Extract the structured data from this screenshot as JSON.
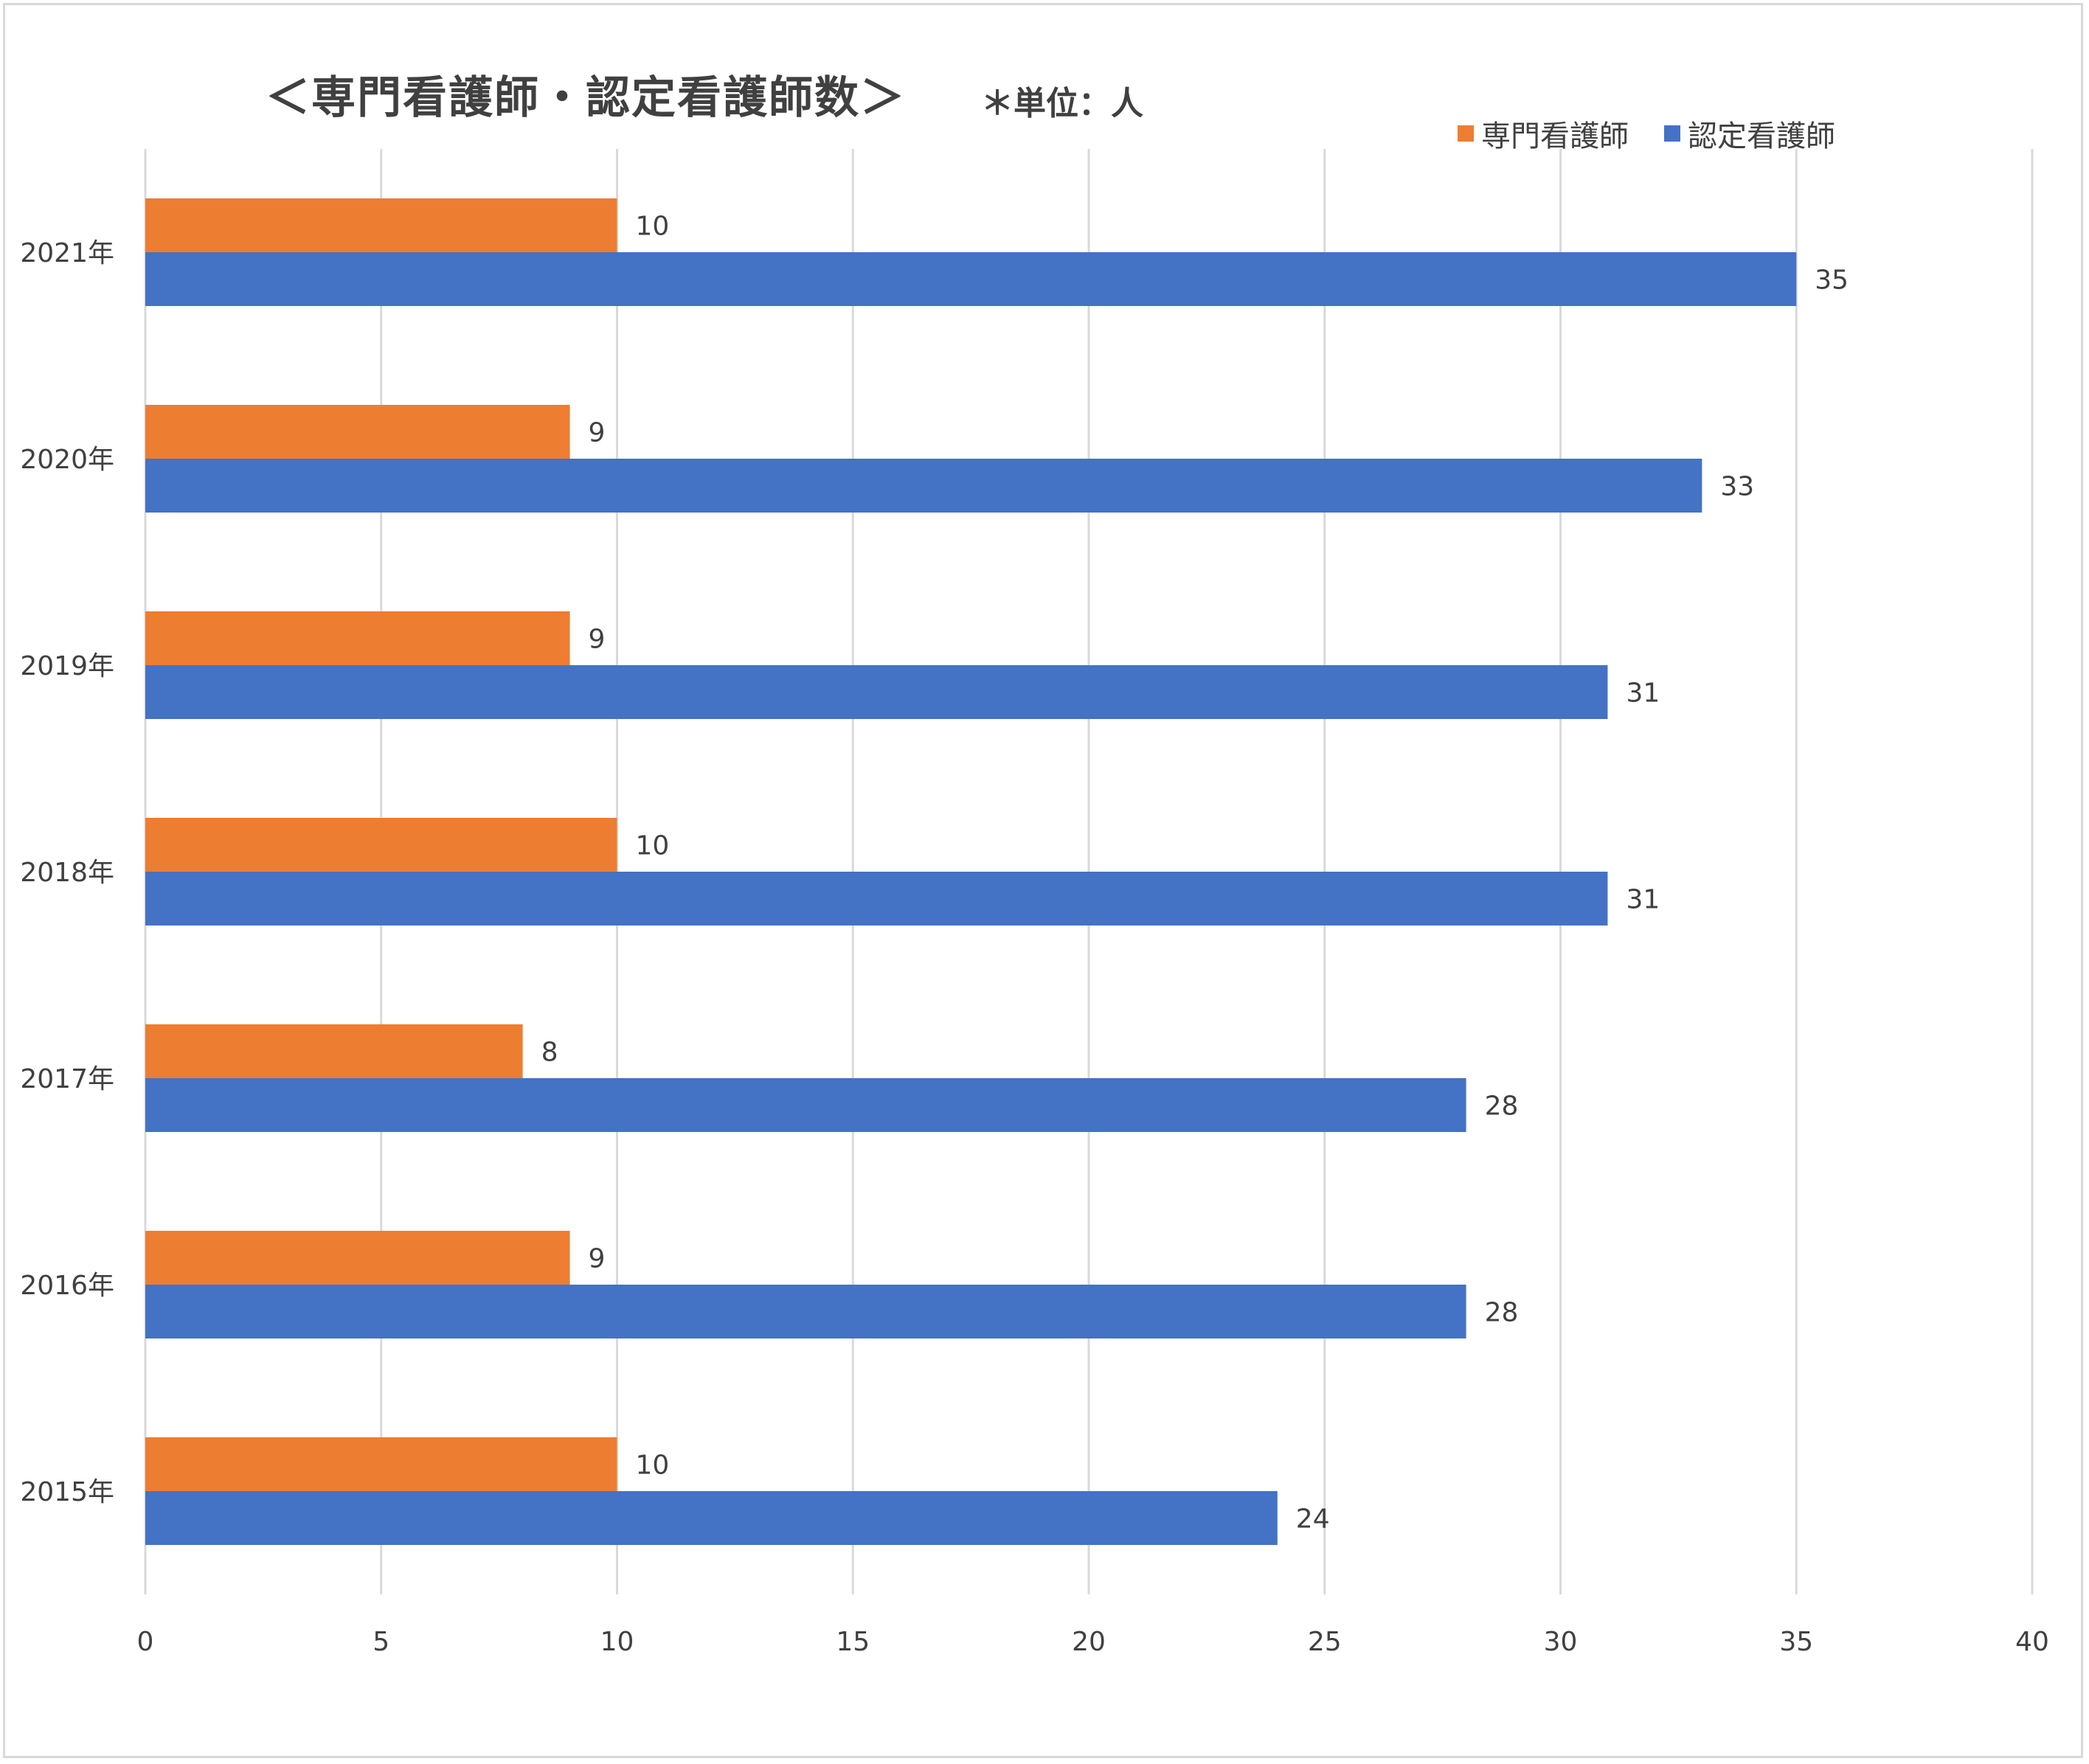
{
  "chart_data": {
    "type": "bar",
    "orientation": "horizontal",
    "title": "＜専門看護師・認定看護師数＞",
    "subtitle": "＊単位：人",
    "categories": [
      "2021年",
      "2020年",
      "2019年",
      "2018年",
      "2017年",
      "2016年",
      "2015年"
    ],
    "series": [
      {
        "name": "専門看護師",
        "color": "#ED7D31",
        "values": [
          10,
          9,
          9,
          10,
          8,
          9,
          10
        ]
      },
      {
        "name": "認定看護師",
        "color": "#4472C4",
        "values": [
          35,
          33,
          31,
          31,
          28,
          28,
          24
        ]
      }
    ],
    "xlim": [
      0,
      40
    ],
    "xticks": [
      0,
      5,
      10,
      15,
      20,
      25,
      30,
      35,
      40
    ],
    "grid": "vertical",
    "legend": "top-right",
    "data_labels": true
  }
}
